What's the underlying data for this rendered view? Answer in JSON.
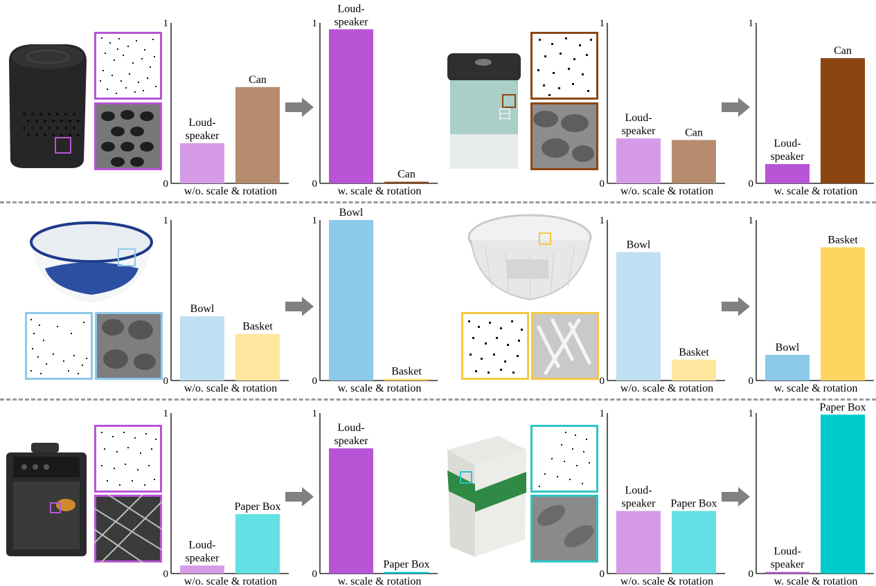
{
  "colors": {
    "loudspeaker_light": "#d59be6",
    "loudspeaker_dark": "#b854d6",
    "can": "#b78c6e",
    "can_dark": "#8b4513",
    "bowl_light": "#bfdff2",
    "bowl_dark": "#8ccae9",
    "basket_light": "#fee69e",
    "basket_dark": "#fdd560",
    "paperbox": "#62e0e3",
    "paperbox_dark": "#00cccc",
    "arrow": "#808080",
    "separator": "#9a9a9a"
  },
  "icons": [
    "right-arrow-icon"
  ],
  "images": [
    {
      "name": "loudspeaker-photo",
      "frame": "#b854d6"
    },
    {
      "name": "tea-can-photo",
      "frame": "#8b4513"
    },
    {
      "name": "bowl-photo",
      "frame": "#8ccae9"
    },
    {
      "name": "basket-photo",
      "frame": "#f5c842"
    },
    {
      "name": "trolley-speaker-photo",
      "frame": "#b854d6"
    },
    {
      "name": "paper-box-photo",
      "frame": "#2ec4c6"
    }
  ],
  "chart_data": [
    {
      "type": "bar",
      "xlabel": "w/o. scale & rotation",
      "ylim": [
        0,
        1
      ],
      "yticks": [
        "0",
        "1"
      ],
      "categories": [
        "Loud-\nspeaker",
        "Can"
      ],
      "values": [
        0.25,
        0.6
      ],
      "bar_colors": [
        "#d59be6",
        "#b78c6e"
      ]
    },
    {
      "type": "bar",
      "xlabel": "w. scale & rotation",
      "ylim": [
        0,
        1
      ],
      "yticks": [
        "0",
        "1"
      ],
      "categories": [
        "Loud-\nspeaker",
        "Can"
      ],
      "values": [
        0.96,
        0.01
      ],
      "bar_colors": [
        "#b854d6",
        "#8b4513"
      ]
    },
    {
      "type": "bar",
      "xlabel": "w/o. scale & rotation",
      "ylim": [
        0,
        1
      ],
      "yticks": [
        "0",
        "1"
      ],
      "categories": [
        "Loud-\nspeaker",
        "Can"
      ],
      "values": [
        0.28,
        0.27
      ],
      "bar_colors": [
        "#d59be6",
        "#b78c6e"
      ]
    },
    {
      "type": "bar",
      "xlabel": "w. scale & rotation",
      "ylim": [
        0,
        1
      ],
      "yticks": [
        "0",
        "1"
      ],
      "categories": [
        "Loud-\nspeaker",
        "Can"
      ],
      "values": [
        0.12,
        0.78
      ],
      "bar_colors": [
        "#b854d6",
        "#8b4513"
      ]
    },
    {
      "type": "bar",
      "xlabel": "w/o. scale & rotation",
      "ylim": [
        0,
        1
      ],
      "yticks": [
        "0",
        "1"
      ],
      "categories": [
        "Bowl",
        "Basket"
      ],
      "values": [
        0.4,
        0.29
      ],
      "bar_colors": [
        "#bfdff2",
        "#fee69e"
      ]
    },
    {
      "type": "bar",
      "xlabel": "w. scale & rotation",
      "ylim": [
        0,
        1
      ],
      "yticks": [
        "0",
        "1"
      ],
      "categories": [
        "Bowl",
        "Basket"
      ],
      "values": [
        1.0,
        0.01
      ],
      "bar_colors": [
        "#8ccae9",
        "#fdd560"
      ]
    },
    {
      "type": "bar",
      "xlabel": "w/o. scale & rotation",
      "ylim": [
        0,
        1
      ],
      "yticks": [
        "0",
        "1"
      ],
      "categories": [
        "Bowl",
        "Basket"
      ],
      "values": [
        0.8,
        0.13
      ],
      "bar_colors": [
        "#bfdff2",
        "#fee69e"
      ]
    },
    {
      "type": "bar",
      "xlabel": "w. scale & rotation",
      "ylim": [
        0,
        1
      ],
      "yticks": [
        "0",
        "1"
      ],
      "categories": [
        "Bowl",
        "Basket"
      ],
      "values": [
        0.16,
        0.83
      ],
      "bar_colors": [
        "#8ccae9",
        "#fdd560"
      ]
    },
    {
      "type": "bar",
      "xlabel": "w/o. scale & rotation",
      "ylim": [
        0,
        1
      ],
      "yticks": [
        "0",
        "1"
      ],
      "categories": [
        "Loud-\nspeaker",
        "Paper Box"
      ],
      "values": [
        0.05,
        0.37
      ],
      "bar_colors": [
        "#d59be6",
        "#62e0e3"
      ]
    },
    {
      "type": "bar",
      "xlabel": "w. scale & rotation",
      "ylim": [
        0,
        1
      ],
      "yticks": [
        "0",
        "1"
      ],
      "categories": [
        "Loud-\nspeaker",
        "Paper Box"
      ],
      "values": [
        0.78,
        0.01
      ],
      "bar_colors": [
        "#b854d6",
        "#00cccc"
      ]
    },
    {
      "type": "bar",
      "xlabel": "w/o. scale & rotation",
      "ylim": [
        0,
        1
      ],
      "yticks": [
        "0",
        "1"
      ],
      "categories": [
        "Loud-\nspeaker",
        "Paper Box"
      ],
      "values": [
        0.39,
        0.39
      ],
      "bar_colors": [
        "#d59be6",
        "#62e0e3"
      ]
    },
    {
      "type": "bar",
      "xlabel": "w. scale & rotation",
      "ylim": [
        0,
        1
      ],
      "yticks": [
        "0",
        "1"
      ],
      "categories": [
        "Loud-\nspeaker",
        "Paper Box"
      ],
      "values": [
        0.01,
        0.99
      ],
      "bar_colors": [
        "#b854d6",
        "#00cccc"
      ]
    }
  ]
}
